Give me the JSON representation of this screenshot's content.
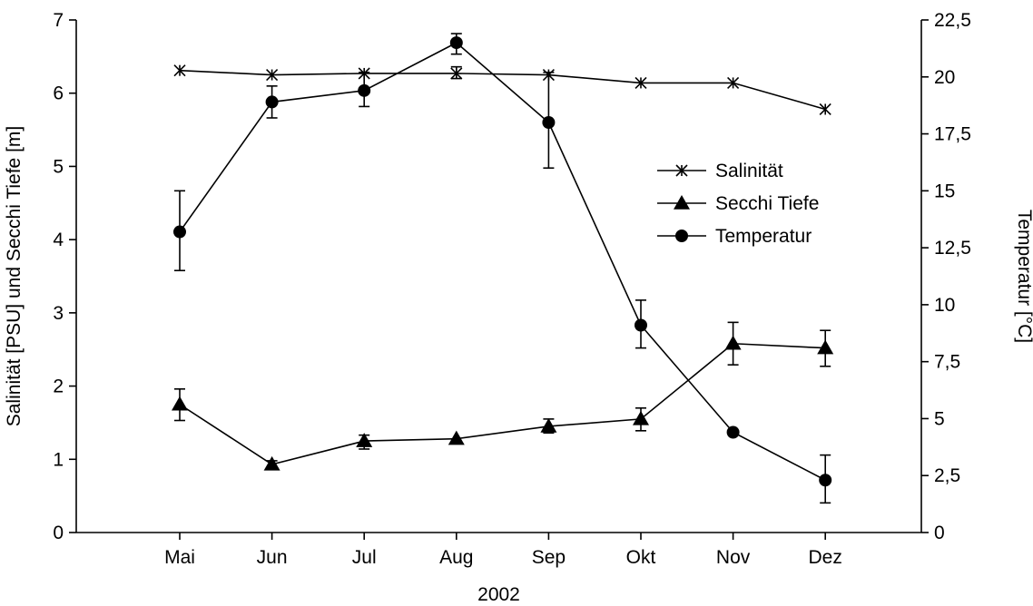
{
  "chart_data": {
    "type": "line",
    "title": "",
    "xlabel": "2002",
    "ylabel_left": "Salinität [PSU] und Secchi Tiefe [m]",
    "ylabel_right": "Temperatur [°C]",
    "categories": [
      "Mai",
      "Jun",
      "Jul",
      "Aug",
      "Sep",
      "Okt",
      "Nov",
      "Dez"
    ],
    "ylim_left": [
      0,
      7
    ],
    "ylim_right": [
      0,
      22.5
    ],
    "y_ticks_left": [
      "0",
      "1",
      "2",
      "3",
      "4",
      "5",
      "6",
      "7"
    ],
    "y_ticks_right": [
      "0",
      "2,5",
      "5",
      "7,5",
      "10",
      "12,5",
      "15",
      "17,5",
      "20",
      "22,5"
    ],
    "grid": false,
    "legend_position": "right",
    "series": [
      {
        "name": "Salinität",
        "axis": "left",
        "marker": "star",
        "values": [
          6.31,
          6.25,
          6.27,
          6.27,
          6.25,
          6.14,
          6.14,
          5.78
        ],
        "err_low": [
          null,
          null,
          null,
          6.2,
          null,
          null,
          null,
          null
        ],
        "err_high": [
          null,
          null,
          null,
          6.36,
          null,
          null,
          null,
          null
        ]
      },
      {
        "name": "Secchi Tiefe",
        "axis": "left",
        "marker": "triangle",
        "values": [
          1.75,
          0.93,
          1.25,
          1.28,
          1.45,
          1.55,
          2.58,
          2.52
        ],
        "err_low": [
          1.53,
          0.88,
          1.14,
          null,
          1.36,
          1.39,
          2.29,
          2.27
        ],
        "err_high": [
          1.96,
          0.98,
          1.33,
          null,
          1.55,
          1.7,
          2.87,
          2.76
        ]
      },
      {
        "name": "Temperatur",
        "axis": "right",
        "marker": "circle",
        "values": [
          13.2,
          18.9,
          19.4,
          21.5,
          18.0,
          9.1,
          4.4,
          2.3
        ],
        "err_low": [
          11.5,
          18.2,
          18.7,
          21.0,
          16.0,
          8.1,
          null,
          1.3
        ],
        "err_high": [
          15.0,
          19.6,
          20.2,
          21.9,
          20.2,
          10.2,
          null,
          3.4
        ]
      }
    ]
  }
}
